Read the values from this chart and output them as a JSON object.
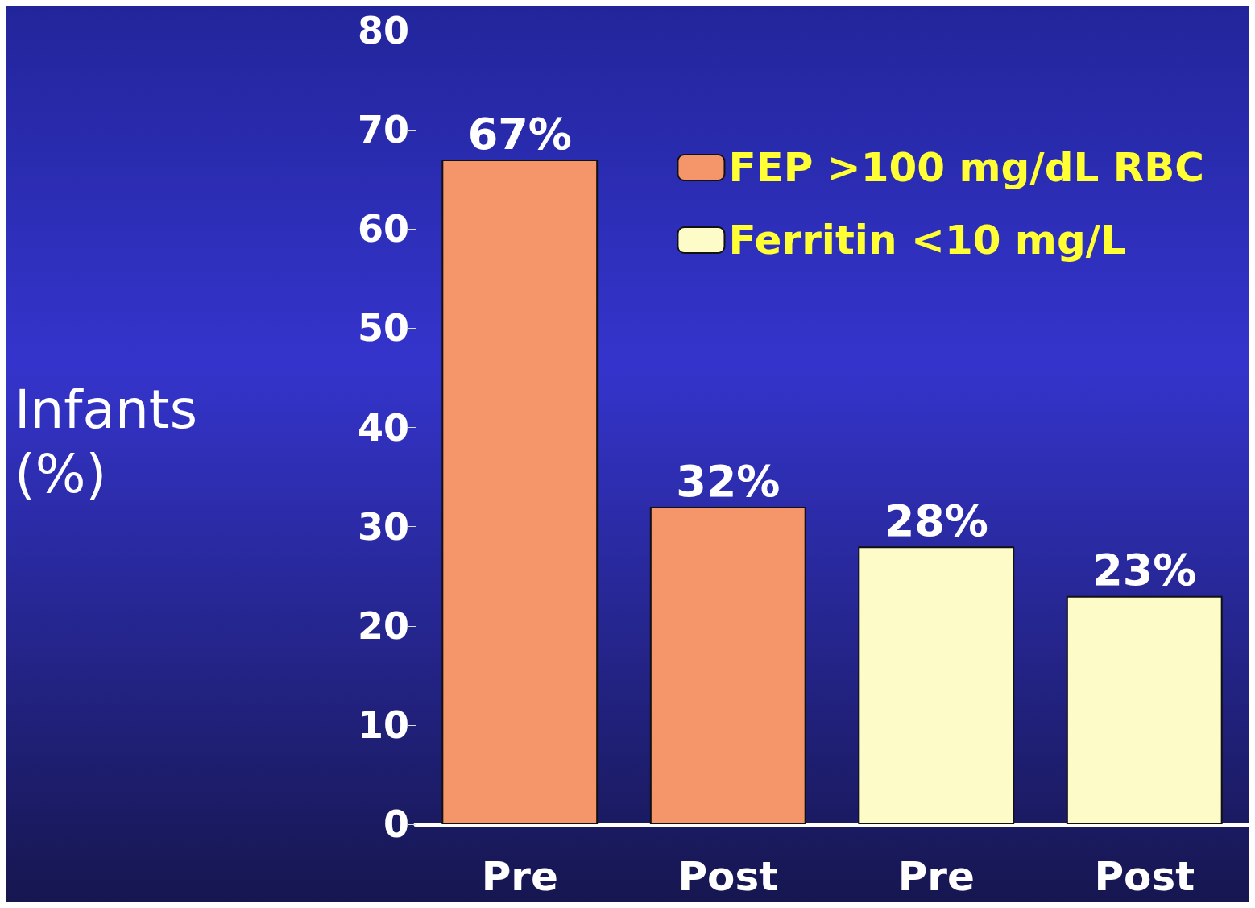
{
  "chart_data": {
    "type": "bar",
    "ylabel": "Infants (%)",
    "categories": [
      "Pre",
      "Post",
      "Pre",
      "Post"
    ],
    "series": [
      {
        "name": "FEP >100 mg/dL RBC",
        "color": "#f4956a",
        "values": [
          67,
          32,
          null,
          null
        ],
        "value_labels": [
          "67%",
          "32%",
          null,
          null
        ]
      },
      {
        "name": "Ferritin <10 mg/L",
        "color": "#fdfcc8",
        "values": [
          null,
          null,
          28,
          23
        ],
        "value_labels": [
          null,
          null,
          "28%",
          "23%"
        ]
      }
    ],
    "ylim": [
      0,
      80
    ],
    "yticks": [
      0,
      10,
      20,
      30,
      40,
      50,
      60,
      70,
      80
    ],
    "grid": false,
    "legend": "top right"
  }
}
